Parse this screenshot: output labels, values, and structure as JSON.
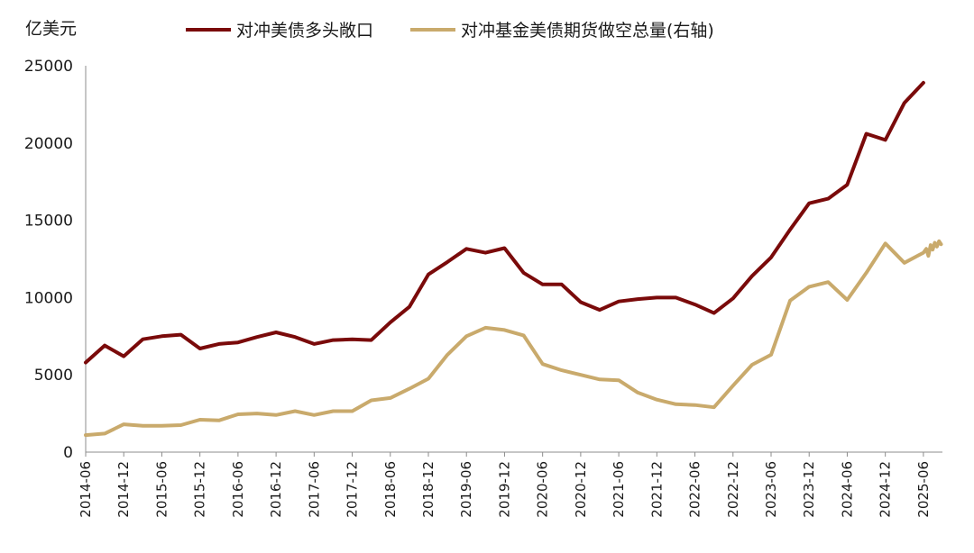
{
  "chart_data": {
    "type": "line",
    "unit": "亿美元",
    "grid": false,
    "legend_placement": "top",
    "ylim": [
      0,
      25000
    ],
    "y_ticks": [
      "0",
      "5000",
      "10000",
      "15000",
      "20000",
      "25000"
    ],
    "x_ticks": [
      "2014-06",
      "2014-12",
      "2015-06",
      "2015-12",
      "2016-06",
      "2016-12",
      "2017-06",
      "2017-12",
      "2018-06",
      "2018-12",
      "2019-06",
      "2019-12",
      "2020-06",
      "2020-12",
      "2021-06",
      "2021-12",
      "2022-06",
      "2022-12",
      "2023-06",
      "2023-12",
      "2024-06",
      "2024-12",
      "2025-06"
    ],
    "x_range": [
      "2014-06",
      "2025-09"
    ],
    "series": [
      {
        "name": "对冲美债多头敞口",
        "color": "#7a0a0a",
        "points": [
          [
            "2014-06",
            5800
          ],
          [
            "2014-09",
            6900
          ],
          [
            "2014-12",
            6200
          ],
          [
            "2015-03",
            7300
          ],
          [
            "2015-06",
            7500
          ],
          [
            "2015-09",
            7600
          ],
          [
            "2015-12",
            6700
          ],
          [
            "2016-03",
            7000
          ],
          [
            "2016-06",
            7100
          ],
          [
            "2016-09",
            7450
          ],
          [
            "2016-12",
            7750
          ],
          [
            "2017-03",
            7450
          ],
          [
            "2017-06",
            7000
          ],
          [
            "2017-09",
            7250
          ],
          [
            "2017-12",
            7300
          ],
          [
            "2018-03",
            7250
          ],
          [
            "2018-06",
            8400
          ],
          [
            "2018-09",
            9400
          ],
          [
            "2018-12",
            11500
          ],
          [
            "2019-03",
            12300
          ],
          [
            "2019-06",
            13150
          ],
          [
            "2019-09",
            12900
          ],
          [
            "2019-12",
            13200
          ],
          [
            "2020-03",
            11600
          ],
          [
            "2020-06",
            10850
          ],
          [
            "2020-09",
            10850
          ],
          [
            "2020-12",
            9700
          ],
          [
            "2021-03",
            9200
          ],
          [
            "2021-06",
            9750
          ],
          [
            "2021-09",
            9900
          ],
          [
            "2021-12",
            10000
          ],
          [
            "2022-03",
            10000
          ],
          [
            "2022-06",
            9550
          ],
          [
            "2022-09",
            9000
          ],
          [
            "2022-12",
            9950
          ],
          [
            "2023-03",
            11400
          ],
          [
            "2023-06",
            12600
          ],
          [
            "2023-09",
            14400
          ],
          [
            "2023-12",
            16100
          ],
          [
            "2024-03",
            16400
          ],
          [
            "2024-06",
            17300
          ],
          [
            "2024-09",
            20600
          ],
          [
            "2024-12",
            20200
          ],
          [
            "2025-03",
            22600
          ],
          [
            "2025-06",
            23900
          ]
        ]
      },
      {
        "name": "对冲基金美债期货做空总量(右轴)",
        "color": "#c9aa6c",
        "points": [
          [
            "2014-06",
            1100
          ],
          [
            "2014-09",
            1200
          ],
          [
            "2014-12",
            1800
          ],
          [
            "2015-03",
            1700
          ],
          [
            "2015-06",
            1700
          ],
          [
            "2015-09",
            1750
          ],
          [
            "2015-12",
            2100
          ],
          [
            "2016-03",
            2050
          ],
          [
            "2016-06",
            2450
          ],
          [
            "2016-09",
            2500
          ],
          [
            "2016-12",
            2400
          ],
          [
            "2017-03",
            2650
          ],
          [
            "2017-06",
            2400
          ],
          [
            "2017-09",
            2650
          ],
          [
            "2017-12",
            2650
          ],
          [
            "2018-03",
            3350
          ],
          [
            "2018-06",
            3500
          ],
          [
            "2018-09",
            4100
          ],
          [
            "2018-12",
            4750
          ],
          [
            "2019-03",
            6300
          ],
          [
            "2019-06",
            7500
          ],
          [
            "2019-09",
            8050
          ],
          [
            "2019-12",
            7900
          ],
          [
            "2020-03",
            7550
          ],
          [
            "2020-06",
            5700
          ],
          [
            "2020-09",
            5300
          ],
          [
            "2020-12",
            5000
          ],
          [
            "2021-03",
            4700
          ],
          [
            "2021-06",
            4650
          ],
          [
            "2021-09",
            3850
          ],
          [
            "2021-12",
            3400
          ],
          [
            "2022-03",
            3100
          ],
          [
            "2022-06",
            3050
          ],
          [
            "2022-09",
            2900
          ],
          [
            "2022-12",
            4300
          ],
          [
            "2023-03",
            5650
          ],
          [
            "2023-06",
            6300
          ],
          [
            "2023-09",
            9800
          ],
          [
            "2023-12",
            10700
          ],
          [
            "2024-03",
            11000
          ],
          [
            "2024-06",
            9850
          ],
          [
            "2024-09",
            11600
          ],
          [
            "2024-12",
            13500
          ],
          [
            "2025-03",
            12250
          ],
          [
            "2025-06",
            12900
          ],
          [
            "2025-06-15",
            13150
          ],
          [
            "2025-06-25",
            12700
          ],
          [
            "2025-07-05",
            13400
          ],
          [
            "2025-07-15",
            13100
          ],
          [
            "2025-07-25",
            13550
          ],
          [
            "2025-08-05",
            13300
          ],
          [
            "2025-08-15",
            13650
          ],
          [
            "2025-08-25",
            13450
          ]
        ]
      }
    ]
  }
}
